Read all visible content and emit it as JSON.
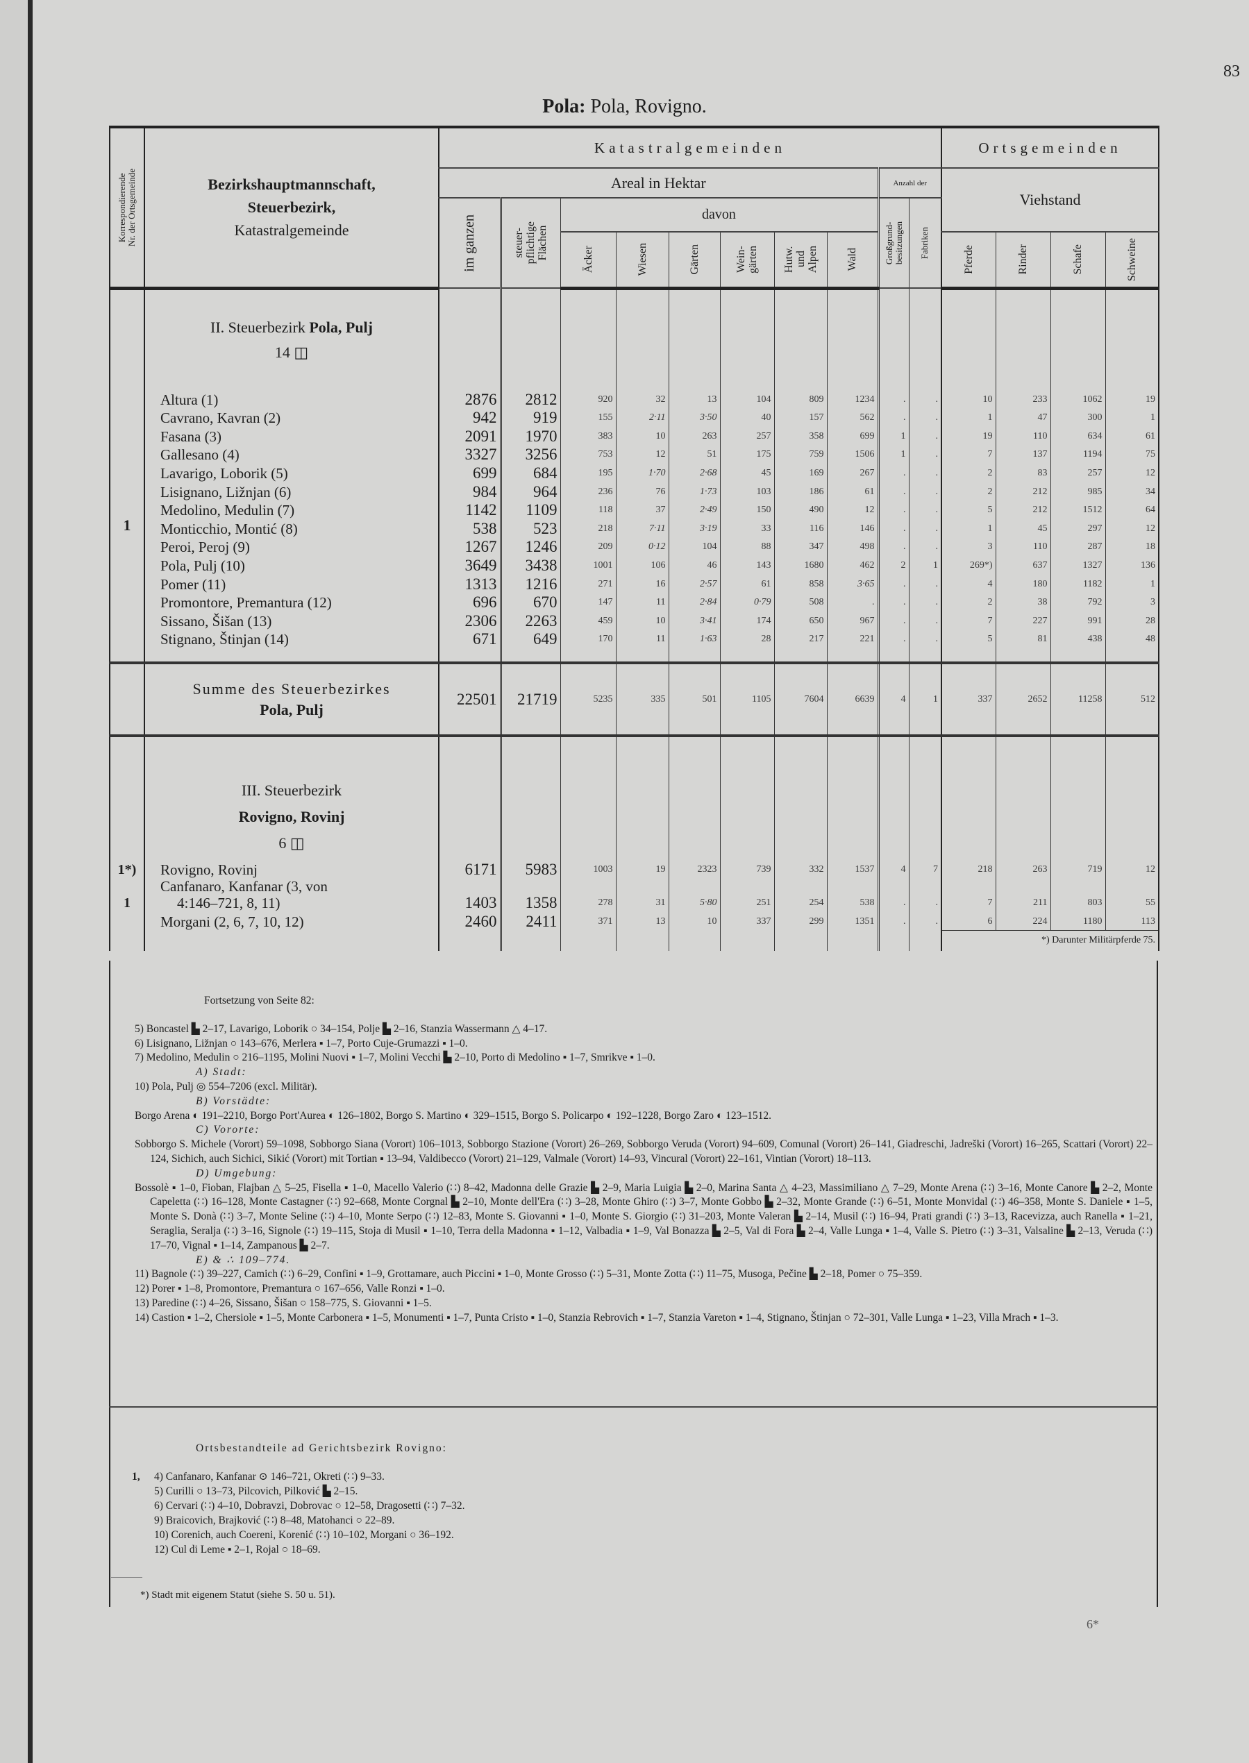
{
  "page_number": "83",
  "title": {
    "bold": "Pola:",
    "rest": " Pola, Rovigno."
  },
  "header": {
    "korr": [
      "Korrespondierende",
      "Nr. der Ortsgemeinde"
    ],
    "name_lines": [
      "Bezirkshauptmannschaft,",
      "Steuerbezirk,",
      "Katastralgemeinde"
    ],
    "katastral": "Katastralgemeinden",
    "orts": "Ortsgemeinden",
    "areal": "Areal in Hektar",
    "anzahl": "Anzahl der",
    "viehstand": "Viehstand",
    "davon": "davon",
    "im_ganzen": "im ganzen",
    "steuer": [
      "steuer-",
      "pflichtige",
      "Flächen"
    ],
    "cols_davon": [
      "Äcker",
      "Wiesen",
      "Gärten",
      "Wein-|gärten",
      "Hutw.|und|Alpen",
      "Wald"
    ],
    "cols_anzahl": [
      "Großgrund-|besitzungen",
      "Fabriken"
    ],
    "cols_vieh": [
      "Pferde",
      "Rinder",
      "Schafe",
      "Schweine"
    ]
  },
  "sections": [
    {
      "title_plain": "II. Steuerbezirk ",
      "title_bold": "Pola, Pulj",
      "count": "14 ◫",
      "korr": "1",
      "rows": [
        [
          "Altura (1)",
          "2876",
          "2812",
          "920",
          "32",
          "13",
          "104",
          "809",
          "1234",
          ".",
          ".",
          "10",
          "233",
          "1062",
          "19"
        ],
        [
          "Cavrano, Kavran (2)",
          "942",
          "919",
          "155",
          "2·11",
          "3·50",
          "40",
          "157",
          "562",
          ".",
          ".",
          "1",
          "47",
          "300",
          "1"
        ],
        [
          "Fasana (3)",
          "2091",
          "1970",
          "383",
          "10",
          "263",
          "257",
          "358",
          "699",
          "1",
          ".",
          "19",
          "110",
          "634",
          "61"
        ],
        [
          "Gallesano (4)",
          "3327",
          "3256",
          "753",
          "12",
          "51",
          "175",
          "759",
          "1506",
          "1",
          ".",
          "7",
          "137",
          "1194",
          "75"
        ],
        [
          "Lavarigo, Loborik (5)",
          "699",
          "684",
          "195",
          "1·70",
          "2·68",
          "45",
          "169",
          "267",
          ".",
          ".",
          "2",
          "83",
          "257",
          "12"
        ],
        [
          "Lisignano, Ližnjan (6)",
          "984",
          "964",
          "236",
          "76",
          "1·73",
          "103",
          "186",
          "61",
          ".",
          ".",
          "2",
          "212",
          "985",
          "34"
        ],
        [
          "Medolino, Medulin (7)",
          "1142",
          "1109",
          "118",
          "37",
          "2·49",
          "150",
          "490",
          "12",
          ".",
          ".",
          "5",
          "212",
          "1512",
          "64"
        ],
        [
          "Monticchio, Montić (8)",
          "538",
          "523",
          "218",
          "7·11",
          "3·19",
          "33",
          "116",
          "146",
          ".",
          ".",
          "1",
          "45",
          "297",
          "12"
        ],
        [
          "Peroi, Peroj (9)",
          "1267",
          "1246",
          "209",
          "0·12",
          "104",
          "88",
          "347",
          "498",
          ".",
          ".",
          "3",
          "110",
          "287",
          "18"
        ],
        [
          "Pola, Pulj (10)",
          "3649",
          "3438",
          "1001",
          "106",
          "46",
          "143",
          "1680",
          "462",
          "2",
          "1",
          "269*)",
          "637",
          "1327",
          "136"
        ],
        [
          "Pomer (11)",
          "1313",
          "1216",
          "271",
          "16",
          "2·57",
          "61",
          "858",
          "3·65",
          ".",
          ".",
          "4",
          "180",
          "1182",
          "1"
        ],
        [
          "Promontore, Premantura (12)",
          "696",
          "670",
          "147",
          "11",
          "2·84",
          "0·79",
          "508",
          ".",
          ".",
          ".",
          "2",
          "38",
          "792",
          "3"
        ],
        [
          "Sissano, Šišan (13)",
          "2306",
          "2263",
          "459",
          "10",
          "3·41",
          "174",
          "650",
          "967",
          ".",
          ".",
          "7",
          "227",
          "991",
          "28"
        ],
        [
          "Stignano, Štinjan (14)",
          "671",
          "649",
          "170",
          "11",
          "1·63",
          "28",
          "217",
          "221",
          ".",
          ".",
          "5",
          "81",
          "438",
          "48"
        ]
      ]
    }
  ],
  "summe": {
    "label": "Summe des Steuerbezirkes",
    "name": "Pola, Pulj",
    "values": [
      "22501",
      "21719",
      "5235",
      "335",
      "501",
      "1105",
      "7604",
      "6639",
      "4",
      "1",
      "337",
      "2652",
      "11258",
      "512"
    ]
  },
  "section3": {
    "line1": "III. Steuerbezirk",
    "line2": "Rovigno, Rovinj",
    "count": "6 ◫",
    "rows": [
      {
        "korr": "1*)",
        "name": [
          "Rovigno, Rovinj"
        ],
        "values": [
          "6171",
          "5983",
          "1003",
          "19",
          "2323",
          "739",
          "332",
          "1537",
          "4",
          "7",
          "218",
          "263",
          "719",
          "12"
        ]
      },
      {
        "korr": "1",
        "name": [
          "Canfanaro, Kanfanar (3, von",
          "4:146–721, 8, 11)"
        ],
        "values": [
          "1403",
          "1358",
          "278",
          "31",
          "5·80",
          "251",
          "254",
          "538",
          ".",
          ".",
          "7",
          "211",
          "803",
          "55"
        ]
      },
      {
        "korr": "",
        "name": [
          "Morgani (2, 6, 7, 10, 12)"
        ],
        "values": [
          "2460",
          "2411",
          "371",
          "13",
          "10",
          "337",
          "299",
          "1351",
          ".",
          ".",
          "6",
          "224",
          "1180",
          "113"
        ]
      }
    ],
    "footnote": "*) Darunter Militärpferde 75."
  },
  "footnotes": {
    "continued": "Fortsetzung von Seite 82:",
    "items": [
      {
        "type": "hang",
        "text": "5) Boncastel ▙ 2–17, Lavarigo, Loborik ○ 34–154, Polje ▙ 2–16, Stanzia Wassermann △ 4–17."
      },
      {
        "type": "hang",
        "text": "6) Lisignano, Ližnjan ○ 143–676, Merlera ▪ 1–7, Porto Cuje-Grumazzi ▪ 1–0."
      },
      {
        "type": "hang",
        "text": "7) Medolino, Medulin ○ 216–1195, Molini Nuovi ▪ 1–7, Molini Vecchi ▙ 2–10, Porto di Medolino ▪ 1–7, Smrikve ▪ 1–0."
      },
      {
        "type": "sub",
        "text": "A) Stadt:"
      },
      {
        "type": "hang",
        "text": "10) Pola, Pulj ◎ 554–7206 (excl. Militär)."
      },
      {
        "type": "sub",
        "text": "B) Vorstädte:"
      },
      {
        "type": "hang",
        "text": "Borgo Arena ◐ 191–2210, Borgo Port'Aurea ◐ 126–1802, Borgo S. Martino ◐ 329–1515, Borgo S. Policarpo ◐ 192–1228, Borgo Zaro ◐ 123–1512."
      },
      {
        "type": "sub",
        "text": "C) Vororte:"
      },
      {
        "type": "hang",
        "text": "Sobborgo S. Michele (Vorort) 59–1098, Sobborgo Siana (Vorort) 106–1013, Sobborgo Stazione (Vorort) 26–269, Sobborgo Veruda (Vorort) 94–609, Comunal (Vorort) 26–141, Giadreschi, Jadreški (Vorort) 16–265, Scattari (Vorort) 22–124, Sichich, auch Sichici, Sikić (Vorort) mit Tortian ▪ 13–94, Valdibecco (Vorort) 21–129, Valmale (Vorort) 14–93, Vincural (Vorort) 22–161, Vintian (Vorort) 18–113."
      },
      {
        "type": "sub",
        "text": "D) Umgebung:"
      },
      {
        "type": "hang",
        "text": "Bossolè ▪ 1–0, Fioban, Flajban △ 5–25, Fisella ▪ 1–0, Macello Valerio (∷) 8–42, Madonna delle Grazie ▙ 2–9, Maria Luigia ▙ 2–0, Marina Santa △ 4–23, Massimiliano △ 7–29, Monte Arena (∷) 3–16, Monte Canore ▙ 2–2, Monte Capeletta (∷) 16–128, Monte Castagner (∷) 92–668, Monte Corgnal ▙ 2–10, Monte dell'Era (∷) 3–28, Monte Ghiro (∷) 3–7, Monte Gobbo ▙ 2–32, Monte Grande (∷) 6–51, Monte Monvidal (∷) 46–358, Monte S. Daniele ▪ 1–5, Monte S. Donà (∷) 3–7, Monte Seline (∷) 4–10, Monte Serpo (∷) 12–83, Monte S. Giovanni ▪ 1–0, Monte S. Giorgio (∷) 31–203, Monte Valeran ▙ 2–14, Musil (∷) 16–94, Prati grandi (∷) 3–13, Racevizza, auch Ranella ▪ 1–21, Seraglia, Seralja (∷) 3–16, Signole (∷) 19–115, Stoja di Musil ▪ 1–10, Terra della Madonna ▪ 1–12, Valbadia ▪ 1–9, Val Bonazza ▙ 2–5, Val di Fora ▙ 2–4, Valle Lunga ▪ 1–4, Valle S. Pietro (∷) 3–31, Valsaline ▙ 2–13, Veruda (∷) 17–70, Vignal ▪ 1–14, Zampanous ▙ 2–7."
      },
      {
        "type": "sub",
        "text": "E) & ∴ 109–774."
      },
      {
        "type": "hang",
        "text": "11) Bagnole (∷) 39–227, Camich (∷) 6–29, Confini ▪ 1–9, Grottamare, auch Piccini ▪ 1–0, Monte Grosso (∷) 5–31, Monte Zotta (∷) 11–75, Musoga, Pečine ▙ 2–18, Pomer ○ 75–359."
      },
      {
        "type": "hang",
        "text": "12) Porer ▪ 1–8, Promontore, Premantura ○ 167–656, Valle Ronzi ▪ 1–0."
      },
      {
        "type": "hang",
        "text": "13) Paredine (∷) 4–26, Sissano, Šišan ○ 158–775, S. Giovanni ▪ 1–5."
      },
      {
        "type": "hang",
        "text": "14) Castion ▪ 1–2, Chersiole ▪ 1–5, Monte Carbonera ▪ 1–5, Monumenti ▪ 1–7, Punta Cristo ▪ 1–0, Stanzia Rebrovich ▪ 1–7, Stanzia Vareton ▪ 1–4, Stignano, Štinjan ○ 72–301, Valle Lunga ▪ 1–23, Villa Mrach ▪ 1–3."
      }
    ]
  },
  "ortsbestandteile": {
    "title": "Ortsbestandteile ad Gerichtsbezirk Rovigno:",
    "items": [
      {
        "lead": "1,",
        "text": "4) Canfanaro, Kanfanar ⊙ 146–721, Okreti (∷) 9–33."
      },
      {
        "lead": "",
        "text": "5) Curilli ○ 13–73, Pilcovich, Pilković ▙ 2–15."
      },
      {
        "lead": "",
        "text": "6) Cervari (∷) 4–10, Dobravzi, Dobrovac ○ 12–58, Dragosetti (∷) 7–32."
      },
      {
        "lead": "",
        "text": "9) Braicovich, Brajković (∷) 8–48, Matohanci ○ 22–89."
      },
      {
        "lead": "",
        "text": "10) Corenich, auch Coereni, Korenić (∷) 10–102, Morgani ○ 36–192."
      },
      {
        "lead": "",
        "text": "12) Cul di Leme ▪ 2–1, Rojal ○ 18–69."
      }
    ]
  },
  "stadt_note": "*) Stadt mit eigenem Statut (siehe S. 50 u. 51).",
  "signature": "6*"
}
